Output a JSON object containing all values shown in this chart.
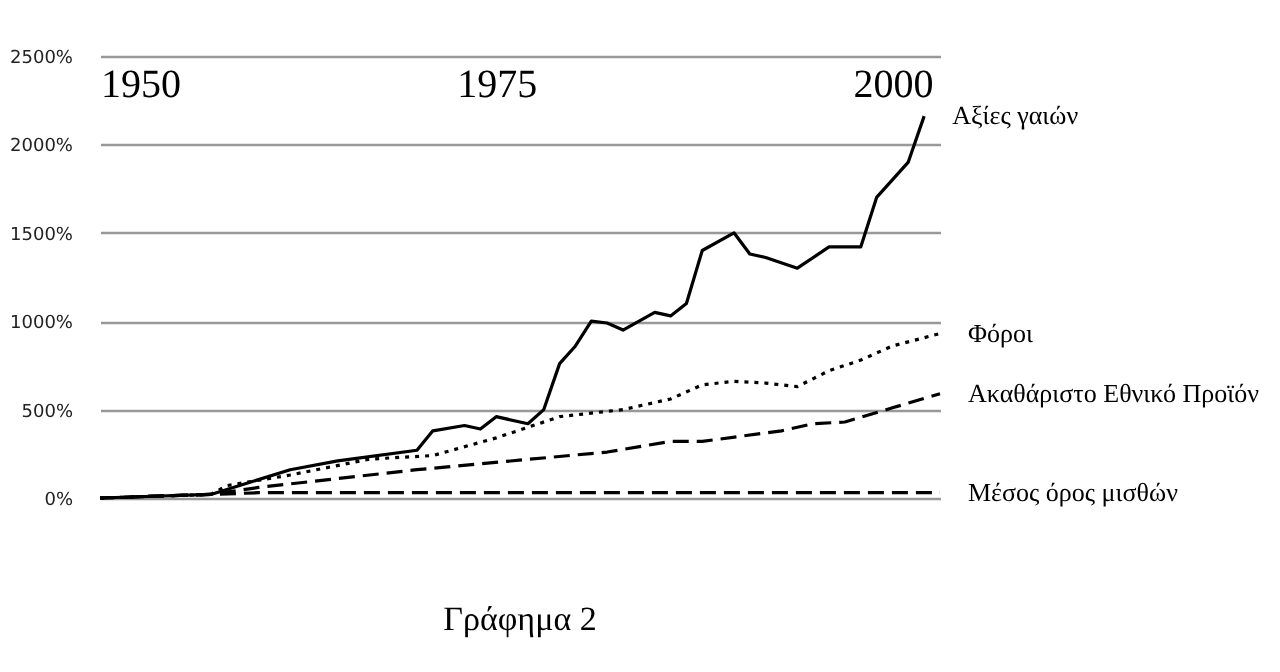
{
  "chart_data": {
    "type": "line",
    "title": "Γράφημα 2",
    "xlim": [
      1950,
      2003
    ],
    "xticks": [
      1950,
      1975,
      2000
    ],
    "ylim": [
      0,
      2500
    ],
    "yticks": [
      {
        "value": 0,
        "label": "0%"
      },
      {
        "value": 500,
        "label": "500%"
      },
      {
        "value": 1000,
        "label": "1000%"
      },
      {
        "value": 1500,
        "label": "1500%"
      },
      {
        "value": 2000,
        "label": "2000%"
      },
      {
        "value": 2500,
        "label": "2500%"
      }
    ],
    "grid": "y",
    "marker": "none",
    "series": [
      {
        "name": "Αξίες γαιών",
        "color": "#000000",
        "line_style": "solid",
        "x": [
          1950,
          1957,
          1962,
          1965,
          1970,
          1971,
          1973,
          1974,
          1975,
          1977,
          1978,
          1979,
          1980,
          1981,
          1982,
          1983,
          1985,
          1986,
          1987,
          1988,
          1990,
          1991,
          1992,
          1994,
          1996,
          1998,
          1999,
          2001,
          2002
        ],
        "values": [
          0,
          20,
          160,
          210,
          270,
          380,
          410,
          390,
          460,
          420,
          500,
          760,
          860,
          1000,
          990,
          950,
          1050,
          1030,
          1100,
          1400,
          1500,
          1380,
          1360,
          1300,
          1420,
          1420,
          1700,
          1900,
          2160
        ]
      },
      {
        "name": "Φόροι",
        "color": "#000000",
        "line_style": "dotted",
        "x": [
          1950,
          1957,
          1958,
          1962,
          1967,
          1971,
          1975,
          1979,
          1983,
          1986,
          1988,
          1990,
          1992,
          1994,
          1996,
          1998,
          2000,
          2003
        ],
        "values": [
          0,
          20,
          70,
          130,
          220,
          240,
          340,
          460,
          500,
          560,
          640,
          660,
          650,
          630,
          720,
          780,
          860,
          930
        ]
      },
      {
        "name": "Ακαθάριστο Εθνικό Προϊόν",
        "color": "#000000",
        "line_style": "dashed",
        "x": [
          1950,
          1957,
          1960,
          1970,
          1982,
          1986,
          1988,
          1993,
          1995,
          1997,
          2000,
          2003
        ],
        "values": [
          0,
          20,
          60,
          160,
          260,
          320,
          320,
          380,
          420,
          430,
          510,
          590
        ]
      },
      {
        "name": "Μέσος όρος μισθών",
        "color": "#000000",
        "line_style": "dashed",
        "x": [
          1950,
          1957,
          1960,
          1980,
          2003
        ],
        "values": [
          0,
          20,
          30,
          30,
          30
        ]
      }
    ]
  }
}
